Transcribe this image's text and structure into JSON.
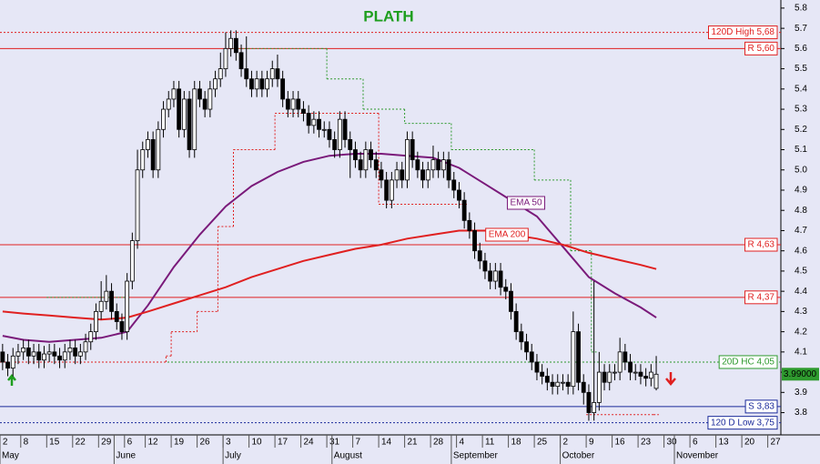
{
  "chart_data": {
    "type": "candlestick",
    "title": "PLATH",
    "title_color": "#1e9e1e",
    "categories": [
      "May 2",
      "May 3",
      "May 4",
      "May 5",
      "May 8",
      "May 9",
      "May 10",
      "May 11",
      "May 12",
      "May 15",
      "May 16",
      "May 17",
      "May 18",
      "May 19",
      "May 22",
      "May 23",
      "May 24",
      "May 25",
      "May 26",
      "May 29",
      "May 30",
      "May 31",
      "Jun 1",
      "Jun 2",
      "Jun 6",
      "Jun 7",
      "Jun 8",
      "Jun 9",
      "Jun 12",
      "Jun 13",
      "Jun 14",
      "Jun 15",
      "Jun 16",
      "Jun 19",
      "Jun 20",
      "Jun 21",
      "Jun 22",
      "Jun 23",
      "Jun 26",
      "Jun 27",
      "Jun 28",
      "Jun 29",
      "Jun 30",
      "Jul 3",
      "Jul 4",
      "Jul 5",
      "Jul 6",
      "Jul 7",
      "Jul 10",
      "Jul 11",
      "Jul 12",
      "Jul 13",
      "Jul 14",
      "Jul 17",
      "Jul 18",
      "Jul 19",
      "Jul 20",
      "Jul 21",
      "Jul 24",
      "Jul 25",
      "Jul 26",
      "Jul 27",
      "Jul 28",
      "Jul 31",
      "Aug 1",
      "Aug 2",
      "Aug 3",
      "Aug 4",
      "Aug 7",
      "Aug 8",
      "Aug 9",
      "Aug 10",
      "Aug 11",
      "Aug 14",
      "Aug 15",
      "Aug 16",
      "Aug 17",
      "Aug 18",
      "Aug 21",
      "Aug 22",
      "Aug 23",
      "Aug 24",
      "Aug 25",
      "Aug 28",
      "Aug 29",
      "Aug 30",
      "Aug 31",
      "Sep 1",
      "Sep 4",
      "Sep 5",
      "Sep 6",
      "Sep 7",
      "Sep 8",
      "Sep 11",
      "Sep 12",
      "Sep 13",
      "Sep 14",
      "Sep 15",
      "Sep 18",
      "Sep 19",
      "Sep 20",
      "Sep 21",
      "Sep 22",
      "Sep 25",
      "Sep 26",
      "Sep 27",
      "Sep 28",
      "Sep 29",
      "Oct 2",
      "Oct 3",
      "Oct 4",
      "Oct 5",
      "Oct 6",
      "Oct 9",
      "Oct 10",
      "Oct 11",
      "Oct 12",
      "Oct 13",
      "Oct 16",
      "Oct 17",
      "Oct 18",
      "Oct 19",
      "Oct 20",
      "Oct 23",
      "Oct 24",
      "Oct 25",
      "Oct 26",
      "Oct 27",
      "Oct 30",
      "Oct 31",
      "Nov 1",
      "Nov 2",
      "Nov 3",
      "Nov 6",
      "Nov 7",
      "Nov 8",
      "Nov 9",
      "Nov 10",
      "Nov 13",
      "Nov 14",
      "Nov 15",
      "Nov 16",
      "Nov 17",
      "Nov 20",
      "Nov 21",
      "Nov 22",
      "Nov 23",
      "Nov 24",
      "Nov 27",
      "Nov 28"
    ],
    "open": [
      4.1,
      4.05,
      4.02,
      4.08,
      4.1,
      4.12,
      4.08,
      4.1,
      4.06,
      4.09,
      4.1,
      4.08,
      4.06,
      4.1,
      4.12,
      4.08,
      4.1,
      4.15,
      4.2,
      4.3,
      4.35,
      4.4,
      4.3,
      4.25,
      4.2,
      4.45,
      4.65,
      5.0,
      5.1,
      5.15,
      5.0,
      5.2,
      5.3,
      5.35,
      5.4,
      5.2,
      5.35,
      5.1,
      5.4,
      5.35,
      5.3,
      5.4,
      5.45,
      5.5,
      5.6,
      5.65,
      5.58,
      5.5,
      5.45,
      5.4,
      5.45,
      5.4,
      5.45,
      5.5,
      5.45,
      5.35,
      5.3,
      5.35,
      5.3,
      5.28,
      5.22,
      5.25,
      5.2,
      5.2,
      5.15,
      5.1,
      5.25,
      5.15,
      5.1,
      5.05,
      5.0,
      5.1,
      5.05,
      5.0,
      4.95,
      4.85,
      4.95,
      5.0,
      4.95,
      5.15,
      5.05,
      5.0,
      4.95,
      5.0,
      5.05,
      5.0,
      5.05,
      4.95,
      4.9,
      4.85,
      4.75,
      4.7,
      4.6,
      4.55,
      4.5,
      4.45,
      4.5,
      4.42,
      4.4,
      4.3,
      4.2,
      4.15,
      4.1,
      4.05,
      4.0,
      3.98,
      3.95,
      3.93,
      3.95,
      3.95,
      3.93,
      4.2,
      3.95,
      3.9,
      3.8,
      3.85,
      4.0,
      3.95,
      4.0,
      4.0,
      4.1,
      4.05,
      4.0,
      4.0,
      3.98,
      3.97,
      3.92,
      null,
      null,
      null,
      null,
      null,
      null,
      null,
      null,
      null,
      null,
      null,
      null,
      null,
      null,
      null,
      null,
      null,
      null,
      null,
      null,
      null,
      null,
      null
    ],
    "high": [
      4.14,
      4.09,
      4.12,
      4.14,
      4.16,
      4.16,
      4.14,
      4.14,
      4.13,
      4.14,
      4.14,
      4.12,
      4.14,
      4.16,
      4.16,
      4.14,
      4.19,
      4.24,
      4.34,
      4.45,
      4.48,
      4.44,
      4.34,
      4.29,
      4.49,
      4.69,
      5.1,
      5.14,
      5.19,
      5.19,
      5.24,
      5.34,
      5.39,
      5.44,
      5.44,
      5.39,
      5.39,
      5.44,
      5.44,
      5.39,
      5.44,
      5.49,
      5.58,
      5.68,
      5.69,
      5.69,
      5.62,
      5.66,
      5.49,
      5.49,
      5.49,
      5.49,
      5.54,
      5.57,
      5.49,
      5.39,
      5.39,
      5.39,
      5.34,
      5.32,
      5.29,
      5.29,
      5.24,
      5.24,
      5.19,
      5.29,
      5.29,
      5.19,
      5.14,
      5.09,
      5.14,
      5.14,
      5.09,
      5.04,
      4.99,
      4.99,
      5.04,
      5.04,
      5.19,
      5.19,
      5.09,
      5.04,
      5.04,
      5.12,
      5.09,
      5.09,
      5.09,
      4.99,
      4.94,
      4.89,
      4.79,
      4.74,
      4.64,
      4.59,
      4.54,
      4.54,
      4.54,
      4.46,
      4.44,
      4.34,
      4.24,
      4.19,
      4.14,
      4.09,
      4.04,
      4.02,
      3.99,
      3.99,
      3.99,
      3.99,
      4.3,
      4.24,
      3.99,
      3.94,
      4.45,
      4.1,
      4.04,
      4.04,
      4.04,
      4.17,
      4.14,
      4.09,
      4.04,
      4.04,
      4.02,
      4.04,
      4.08,
      null,
      null,
      null,
      null,
      null,
      null,
      null,
      null,
      null,
      null,
      null,
      null,
      null,
      null,
      null,
      null,
      null,
      null,
      null,
      null,
      null,
      null,
      null
    ],
    "low": [
      4.01,
      3.98,
      3.98,
      4.04,
      4.06,
      4.04,
      4.04,
      4.02,
      4.02,
      4.05,
      4.04,
      4.02,
      4.02,
      4.06,
      4.04,
      4.04,
      4.06,
      4.11,
      4.16,
      4.26,
      4.31,
      4.26,
      4.21,
      4.16,
      4.16,
      4.41,
      4.61,
      4.96,
      5.06,
      4.96,
      4.96,
      5.16,
      5.26,
      5.31,
      5.16,
      5.16,
      5.06,
      5.06,
      5.31,
      5.26,
      5.26,
      5.36,
      5.41,
      5.46,
      5.56,
      5.54,
      5.46,
      5.41,
      5.36,
      5.36,
      5.36,
      5.36,
      5.41,
      5.41,
      5.31,
      5.26,
      5.26,
      5.26,
      5.24,
      5.18,
      5.18,
      5.16,
      5.16,
      5.11,
      5.06,
      5.06,
      5.11,
      4.96,
      5.01,
      4.96,
      4.96,
      5.01,
      4.96,
      4.91,
      4.81,
      4.81,
      4.91,
      4.91,
      4.91,
      5.01,
      4.96,
      4.91,
      4.91,
      4.96,
      4.96,
      4.96,
      4.91,
      4.86,
      4.81,
      4.71,
      4.66,
      4.56,
      4.51,
      4.46,
      4.41,
      4.41,
      4.38,
      4.36,
      4.26,
      4.16,
      4.11,
      4.06,
      4.01,
      3.96,
      3.94,
      3.91,
      3.89,
      3.89,
      3.91,
      3.89,
      3.89,
      3.91,
      3.84,
      3.76,
      3.76,
      3.81,
      3.91,
      3.91,
      3.96,
      3.96,
      4.01,
      3.96,
      3.96,
      3.94,
      3.93,
      3.93,
      3.91,
      null,
      null,
      null,
      null,
      null,
      null,
      null,
      null,
      null,
      null,
      null,
      null,
      null,
      null,
      null,
      null,
      null,
      null,
      null,
      null,
      null,
      null,
      null
    ],
    "close": [
      4.05,
      4.02,
      4.08,
      4.1,
      4.12,
      4.08,
      4.1,
      4.06,
      4.09,
      4.1,
      4.08,
      4.06,
      4.1,
      4.12,
      4.08,
      4.1,
      4.15,
      4.2,
      4.3,
      4.35,
      4.4,
      4.3,
      4.25,
      4.2,
      4.45,
      4.65,
      5.0,
      5.1,
      5.15,
      5.0,
      5.2,
      5.3,
      5.35,
      5.4,
      5.2,
      5.35,
      5.1,
      5.4,
      5.35,
      5.3,
      5.4,
      5.45,
      5.5,
      5.6,
      5.65,
      5.58,
      5.5,
      5.45,
      5.4,
      5.45,
      5.4,
      5.45,
      5.5,
      5.45,
      5.35,
      5.3,
      5.35,
      5.3,
      5.28,
      5.22,
      5.25,
      5.2,
      5.2,
      5.15,
      5.1,
      5.25,
      5.15,
      5.1,
      5.05,
      5.0,
      5.1,
      5.05,
      5.0,
      4.95,
      4.85,
      4.95,
      5.0,
      4.95,
      5.15,
      5.05,
      5.0,
      4.95,
      5.0,
      5.05,
      5.0,
      5.05,
      4.95,
      4.9,
      4.85,
      4.75,
      4.7,
      4.6,
      4.55,
      4.5,
      4.45,
      4.5,
      4.42,
      4.4,
      4.3,
      4.2,
      4.15,
      4.1,
      4.05,
      4.0,
      3.98,
      3.95,
      3.93,
      3.95,
      3.95,
      3.93,
      4.2,
      3.95,
      3.9,
      3.8,
      3.85,
      4.0,
      3.95,
      4.0,
      4.0,
      4.1,
      4.05,
      4.0,
      4.0,
      3.98,
      3.97,
      4.0,
      3.99,
      null,
      null,
      null,
      null,
      null,
      null,
      null,
      null,
      null,
      null,
      null,
      null,
      null,
      null,
      null,
      null,
      null,
      null,
      null,
      null,
      null,
      null,
      null
    ],
    "up_color": "#ffffff",
    "down_color": "#000000",
    "ylim": [
      3.69,
      5.84
    ],
    "yticks": [
      3.8,
      3.9,
      {
        "value": 4,
        "label": "4.0"
      },
      4.1,
      4.2,
      4.3,
      4.4,
      4.5,
      4.6,
      4.7,
      4.8,
      4.9,
      {
        "value": 5,
        "label": "5.0"
      },
      5.1,
      5.2,
      5.3,
      5.4,
      5.5,
      5.6,
      5.7,
      5.8
    ],
    "xticks": [
      {
        "value": "May 2",
        "label": "2"
      },
      {
        "value": "May 8",
        "label": "8"
      },
      {
        "value": "May 15",
        "label": "15"
      },
      {
        "value": "May 22",
        "label": "22"
      },
      {
        "value": "May 29",
        "label": "29"
      },
      {
        "value": "Jun 6",
        "label": "6"
      },
      {
        "value": "Jun 12",
        "label": "12"
      },
      {
        "value": "Jun 19",
        "label": "19"
      },
      {
        "value": "Jun 26",
        "label": "26"
      },
      {
        "value": "Jul 3",
        "label": "3"
      },
      {
        "value": "Jul 10",
        "label": "10"
      },
      {
        "value": "Jul 17",
        "label": "17"
      },
      {
        "value": "Jul 24",
        "label": "24"
      },
      {
        "value": "Jul 31",
        "label": "31"
      },
      {
        "value": "Aug 7",
        "label": "7"
      },
      {
        "value": "Aug 14",
        "label": "14"
      },
      {
        "value": "Aug 21",
        "label": "21"
      },
      {
        "value": "Aug 28",
        "label": "28"
      },
      {
        "value": "Sep 4",
        "label": "4"
      },
      {
        "value": "Sep 11",
        "label": "11"
      },
      {
        "value": "Sep 18",
        "label": "18"
      },
      {
        "value": "Sep 25",
        "label": "25"
      },
      {
        "value": "Oct 2",
        "label": "2"
      },
      {
        "value": "Oct 9",
        "label": "9"
      },
      {
        "value": "Oct 16",
        "label": "16"
      },
      {
        "value": "Oct 23",
        "label": "23"
      },
      {
        "value": "Oct 30",
        "label": "30"
      },
      {
        "value": "Nov 6",
        "label": "6"
      },
      {
        "value": "Nov 13",
        "label": "13"
      },
      {
        "value": "Nov 20",
        "label": "20"
      },
      {
        "value": "Nov 27",
        "label": "27"
      }
    ],
    "month_labels": [
      {
        "value": "May 2",
        "label": "May"
      },
      {
        "value": "Jun 1",
        "label": "June"
      },
      {
        "value": "Jul 3",
        "label": "July"
      },
      {
        "value": "Aug 1",
        "label": "August"
      },
      {
        "value": "Sep 1",
        "label": "September"
      },
      {
        "value": "Oct 2",
        "label": "October"
      },
      {
        "value": "Nov 1",
        "label": "November"
      }
    ],
    "series": [
      {
        "name": "EMA 50",
        "color": "#7a1a7a",
        "x": [
          "May 2",
          "May 8",
          "May 15",
          "May 22",
          "May 29",
          "Jun 6",
          "Jun 12",
          "Jun 19",
          "Jun 26",
          "Jul 3",
          "Jul 10",
          "Jul 17",
          "Jul 24",
          "Jul 31",
          "Aug 7",
          "Aug 14",
          "Aug 21",
          "Aug 28",
          "Sep 4",
          "Sep 11",
          "Sep 18",
          "Sep 25",
          "Oct 2",
          "Oct 9",
          "Oct 16",
          "Oct 23",
          "Oct 26"
        ],
        "values": [
          4.18,
          4.16,
          4.15,
          4.16,
          4.17,
          4.2,
          4.33,
          4.52,
          4.68,
          4.82,
          4.92,
          4.99,
          5.04,
          5.07,
          5.08,
          5.08,
          5.07,
          5.06,
          5.01,
          4.93,
          4.85,
          4.77,
          4.62,
          4.47,
          4.39,
          4.32,
          4.27
        ]
      },
      {
        "name": "EMA 200",
        "color": "#e02020",
        "x": [
          "May 2",
          "May 8",
          "May 15",
          "May 22",
          "May 29",
          "Jun 6",
          "Jun 12",
          "Jun 19",
          "Jun 26",
          "Jul 3",
          "Jul 10",
          "Jul 17",
          "Jul 24",
          "Jul 31",
          "Aug 7",
          "Aug 14",
          "Aug 21",
          "Aug 28",
          "Sep 4",
          "Sep 11",
          "Sep 18",
          "Sep 25",
          "Oct 2",
          "Oct 9",
          "Oct 16",
          "Oct 23",
          "Oct 26"
        ],
        "values": [
          4.3,
          4.29,
          4.28,
          4.27,
          4.26,
          4.27,
          4.3,
          4.34,
          4.38,
          4.42,
          4.47,
          4.51,
          4.55,
          4.58,
          4.61,
          4.63,
          4.66,
          4.68,
          4.7,
          4.7,
          4.68,
          4.66,
          4.63,
          4.59,
          4.56,
          4.53,
          4.51
        ]
      }
    ],
    "stops": [
      {
        "color": "#2e9a2e",
        "x": [
          "May 15",
          "Jun 2",
          "Jun 6",
          "Jul 5",
          "Jul 28",
          "Jul 31",
          "Aug 9",
          "Aug 21",
          "Sep 1",
          "Sep 25",
          "Oct 4",
          "Oct 10"
        ],
        "values": [
          4.37,
          4.37,
          null,
          5.6,
          5.6,
          5.45,
          5.3,
          5.23,
          5.1,
          4.95,
          4.6,
          4.1
        ]
      },
      {
        "color": "#e02020",
        "x": [
          "May 2",
          "Jun 16",
          "Jun 19",
          "Jun 26",
          "Jun 30",
          "Jul 5",
          "Jul 17",
          "Aug 14",
          "Sep 5",
          "Sep 6",
          "Oct 9",
          "Oct 26"
        ],
        "values": [
          4.05,
          4.08,
          4.2,
          4.3,
          4.72,
          5.1,
          5.28,
          4.83,
          4.83,
          null,
          3.79,
          3.79
        ]
      }
    ],
    "levels": [
      {
        "value": 5.68,
        "label": "120D High 5,68",
        "color": "#e02020",
        "dashed": true
      },
      {
        "value": 5.6,
        "label": "R 5,60",
        "color": "#e02020",
        "dashed": false
      },
      {
        "value": 4.63,
        "label": "R 4,63",
        "color": "#e02020",
        "dashed": false
      },
      {
        "value": 4.37,
        "label": "R 4,37",
        "color": "#e02020",
        "dashed": false
      },
      {
        "value": 4.05,
        "label": "20D HC 4,05",
        "color": "#2e9a2e",
        "dashed": true
      },
      {
        "value": 3.83,
        "label": "S 3,83",
        "color": "#1a2a9a",
        "dashed": false
      },
      {
        "value": 3.75,
        "label": "120 D Low 3,75",
        "color": "#1a2a9a",
        "dashed": true
      }
    ],
    "last_price": {
      "value": 3.99,
      "label": "3.99000",
      "color": "#2e9a2e"
    }
  }
}
